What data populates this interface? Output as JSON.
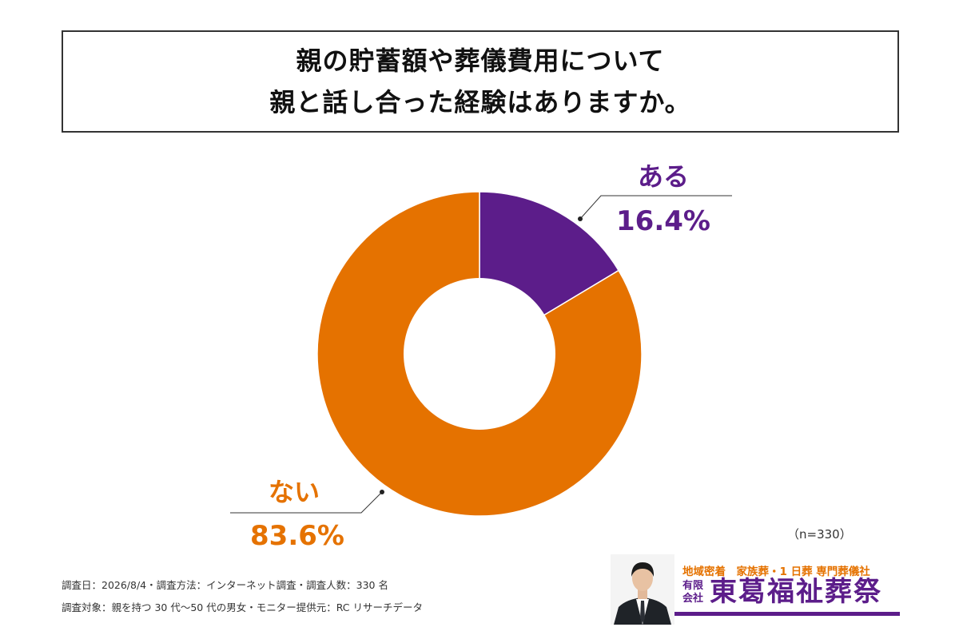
{
  "title": {
    "line1": "親の貯蓄額や葬儀費用について",
    "line2": "親と話し合った経験はありますか。"
  },
  "chart_data": {
    "type": "pie",
    "donut": true,
    "slices": [
      {
        "label": "ある",
        "value": 16.4,
        "display": "16.4%",
        "color": "#5c1d8a"
      },
      {
        "label": "ない",
        "value": 83.6,
        "display": "83.6%",
        "color": "#e57200"
      }
    ],
    "sample_size": "（n=330）"
  },
  "footer": {
    "line1": "調査日：2026/8/4・調査方法：インターネット調査・調査人数：330 名",
    "line2": "調査対象：親を持つ 30 代〜50 代の男女・モニター提供元：RC リサーチデータ"
  },
  "brand": {
    "tagline": "地域密着　家族葬・1 日葬 専門葬儀社",
    "company_type": "有限会社",
    "name": "東葛福祉葬祭",
    "portrait_icon": "person-portrait-icon",
    "colors": {
      "purple": "#5c1d8a",
      "orange": "#e57200"
    }
  }
}
